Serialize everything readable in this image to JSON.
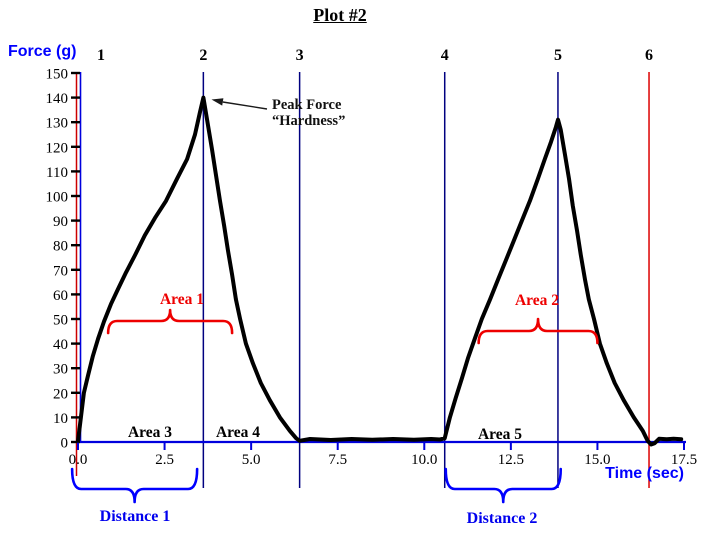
{
  "labels": {
    "title": "Plot #2",
    "force_axis": "Force (g)",
    "time_axis": "Time (sec)",
    "peak_line1": "Peak Force",
    "peak_line2": "“Hardness”",
    "area1": "Area 1",
    "area2": "Area 2",
    "area3": "Area 3",
    "area4": "Area 4",
    "area5": "Area 5",
    "distance1": "Distance 1",
    "distance2": "Distance 2"
  },
  "colors": {
    "axis_blue": "#0000dd",
    "anchor_navy": "#000080",
    "anchor_red": "#cc0000",
    "event6_red": "#dd0000",
    "label_blue": "#0000ff",
    "accent_red": "#ee0000",
    "curve_black": "#000000"
  },
  "chart_data": {
    "type": "line",
    "title": "Plot #2",
    "xlabel": "Time (sec)",
    "ylabel": "Force (g)",
    "xlim": [
      0,
      17.5
    ],
    "ylim": [
      0,
      150
    ],
    "grid": false,
    "x_ticks": [
      "0.0",
      "2.5",
      "5.0",
      "7.5",
      "10.0",
      "12.5",
      "15.0",
      "17.5"
    ],
    "x_tick_values": [
      0,
      2.5,
      5,
      7.5,
      10,
      12.5,
      15,
      17.5
    ],
    "y_ticks": [
      "0",
      "10",
      "20",
      "30",
      "40",
      "50",
      "60",
      "70",
      "80",
      "90",
      "100",
      "110",
      "120",
      "130",
      "140",
      "150"
    ],
    "peaks": [
      {
        "label": "Peak Force \"Hardness\"",
        "t": 3.62,
        "force": 140
      },
      {
        "t": 13.86,
        "force": 131
      }
    ],
    "anchors": [
      {
        "label": "1",
        "t": 0,
        "color": "#cc0000"
      },
      {
        "label": "2",
        "t": 3.62,
        "color": "#000080"
      },
      {
        "label": "3",
        "t": 6.4,
        "color": "#000080"
      },
      {
        "label": "4",
        "t": 10.59,
        "color": "#000080"
      },
      {
        "label": "5",
        "t": 13.86,
        "color": "#000080"
      },
      {
        "label": "6",
        "t": 16.49,
        "color": "#dd0000"
      }
    ],
    "braces": {
      "area1_t": [
        0.87,
        4.45
      ],
      "area2_t": [
        11.57,
        15.0
      ],
      "distance1_t": [
        -0.17,
        3.44
      ],
      "distance2_t": [
        10.62,
        13.94
      ]
    },
    "series": [
      {
        "name": "force-time-curve",
        "color": "#000000",
        "points": [
          [
            0,
            0.5
          ],
          [
            0.05,
            6
          ],
          [
            0.17,
            20
          ],
          [
            0.29,
            27
          ],
          [
            0.43,
            35
          ],
          [
            0.58,
            42
          ],
          [
            0.75,
            49
          ],
          [
            0.95,
            56
          ],
          [
            1.15,
            62
          ],
          [
            1.39,
            69
          ],
          [
            1.65,
            76
          ],
          [
            1.93,
            84
          ],
          [
            2.22,
            91
          ],
          [
            2.54,
            98
          ],
          [
            2.86,
            107
          ],
          [
            3.15,
            115
          ],
          [
            3.38,
            125
          ],
          [
            3.52,
            134
          ],
          [
            3.62,
            140
          ],
          [
            3.75,
            129
          ],
          [
            3.87,
            119
          ],
          [
            3.98,
            109
          ],
          [
            4.1,
            98
          ],
          [
            4.22,
            88
          ],
          [
            4.33,
            78
          ],
          [
            4.45,
            68
          ],
          [
            4.56,
            58
          ],
          [
            4.68,
            50
          ],
          [
            4.85,
            40
          ],
          [
            5.05,
            32
          ],
          [
            5.28,
            24
          ],
          [
            5.54,
            17
          ],
          [
            5.83,
            10
          ],
          [
            6.12,
            4.5
          ],
          [
            6.3,
            1.5
          ],
          [
            6.4,
            0.5
          ],
          [
            6.7,
            1.2
          ],
          [
            7.3,
            0.8
          ],
          [
            7.9,
            1.2
          ],
          [
            8.5,
            0.9
          ],
          [
            9.1,
            1.2
          ],
          [
            9.7,
            0.9
          ],
          [
            10.2,
            1.2
          ],
          [
            10.45,
            1
          ],
          [
            10.59,
            1.5
          ],
          [
            10.74,
            10
          ],
          [
            10.91,
            18
          ],
          [
            11.09,
            26
          ],
          [
            11.26,
            34
          ],
          [
            11.46,
            42
          ],
          [
            11.66,
            50
          ],
          [
            11.9,
            58
          ],
          [
            12.13,
            66
          ],
          [
            12.36,
            74
          ],
          [
            12.59,
            82
          ],
          [
            12.82,
            90
          ],
          [
            13.05,
            98
          ],
          [
            13.28,
            107
          ],
          [
            13.48,
            115
          ],
          [
            13.66,
            122
          ],
          [
            13.8,
            128
          ],
          [
            13.86,
            131
          ],
          [
            13.94,
            127
          ],
          [
            14.06,
            117
          ],
          [
            14.18,
            107
          ],
          [
            14.29,
            96
          ],
          [
            14.41,
            86
          ],
          [
            14.52,
            76
          ],
          [
            14.64,
            66
          ],
          [
            14.75,
            58
          ],
          [
            14.9,
            50
          ],
          [
            15.07,
            40
          ],
          [
            15.27,
            32
          ],
          [
            15.5,
            24
          ],
          [
            15.76,
            17
          ],
          [
            16.05,
            10
          ],
          [
            16.31,
            4.5
          ],
          [
            16.45,
            0.5
          ],
          [
            16.55,
            -1
          ],
          [
            16.65,
            -0.5
          ],
          [
            16.78,
            1.3
          ],
          [
            17.0,
            1.1
          ],
          [
            17.2,
            1.3
          ],
          [
            17.42,
            1.1
          ]
        ]
      }
    ]
  }
}
